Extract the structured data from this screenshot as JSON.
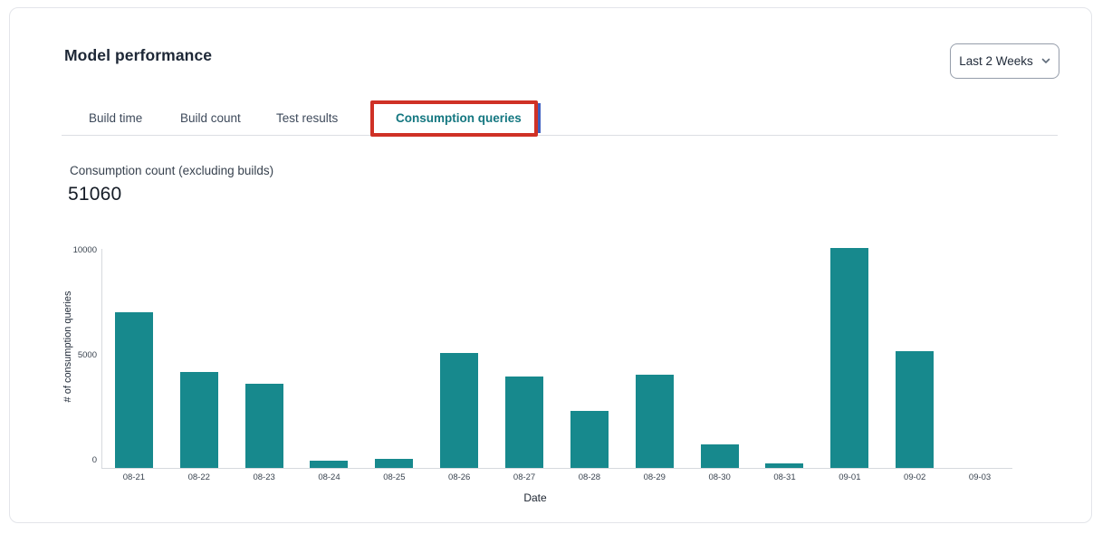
{
  "header": {
    "title": "Model performance",
    "range_selector": {
      "value": "Last 2 Weeks",
      "icon": "chevron-down-icon"
    }
  },
  "tabs": [
    {
      "label": "Build time",
      "active": false
    },
    {
      "label": "Build count",
      "active": false
    },
    {
      "label": "Test results",
      "active": false
    },
    {
      "label": "Consumption queries",
      "active": true
    }
  ],
  "annotation": {
    "type": "highlight-box",
    "target": "Consumption queries",
    "red_color": "#cf3126",
    "blue_color": "#3d5fc0"
  },
  "metric": {
    "label": "Consumption count (excluding builds)",
    "value": "51060"
  },
  "chart_data": {
    "type": "bar",
    "title": "",
    "categories": [
      "08-21",
      "08-22",
      "08-23",
      "08-24",
      "08-25",
      "08-26",
      "08-27",
      "08-28",
      "08-29",
      "08-30",
      "08-31",
      "09-01",
      "09-02",
      "09-03"
    ],
    "values": [
      7400,
      4570,
      4000,
      330,
      440,
      5460,
      4350,
      2720,
      4430,
      1130,
      210,
      10480,
      5540,
      0
    ],
    "xlabel": "Date",
    "ylabel": "# of consumption queries",
    "yticks": [
      "0",
      "5000",
      "10000"
    ],
    "ytick_values": [
      0,
      5000,
      10000
    ],
    "ylim": [
      0,
      10500
    ],
    "grid": false,
    "legend": false,
    "bar_color": "#17898d"
  },
  "colors": {
    "accent_teal": "#147780",
    "bar_teal": "#17898d",
    "card_border": "#e3e5ea",
    "axis_line": "#d6d9de",
    "text_dark": "#1d2736"
  }
}
